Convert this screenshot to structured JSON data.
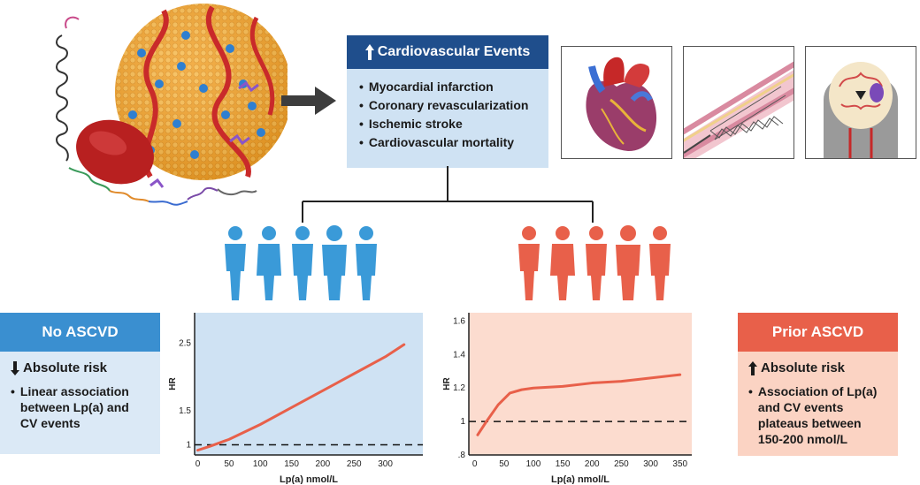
{
  "cv_events": {
    "title": "Cardiovascular Events",
    "items": [
      "Myocardial infarction",
      "Coronary revascularization",
      "Ischemic stroke",
      "Cardiovascular mortality"
    ]
  },
  "no_ascvd": {
    "title": "No ASCVD",
    "risk": "Absolute risk",
    "bullet": "Linear association between Lp(a) and CV events"
  },
  "prior_ascvd": {
    "title": "Prior ASCVD",
    "risk": "Absolute risk",
    "bullet": "Association of Lp(a) and CV events plateaus between 150-200 nmol/L"
  },
  "colors": {
    "blue": "#3a8fd0",
    "orange": "#e8604a",
    "navy": "#1f4e8c",
    "chart_line": "#e8604a"
  },
  "icons": [
    "lpa-particle-illustration",
    "arrow-right-icon",
    "heart-illustration",
    "stent-illustration",
    "brain-illustration",
    "people-group-icon"
  ],
  "chart_data": [
    {
      "type": "line",
      "xlabel": "Lp(a) nmol/L",
      "ylabel": "HR",
      "xticks": [
        0,
        50,
        100,
        150,
        200,
        250,
        300
      ],
      "yticks": [
        "1",
        "1.5",
        "2.5"
      ],
      "xlim": [
        -5,
        360
      ],
      "ylim": [
        0.85,
        2.95
      ],
      "reference_line": 1,
      "series": [
        {
          "x": [
            0,
            20,
            50,
            100,
            150,
            200,
            250,
            300,
            330
          ],
          "y": [
            0.92,
            0.98,
            1.08,
            1.3,
            1.55,
            1.8,
            2.05,
            2.3,
            2.48
          ]
        }
      ]
    },
    {
      "type": "line",
      "xlabel": "Lp(a) nmol/L",
      "ylabel": "HR",
      "xticks": [
        0,
        50,
        100,
        150,
        200,
        250,
        300,
        350
      ],
      "yticks": [
        ".8",
        "1",
        "1.2",
        "1.4",
        "1.6"
      ],
      "ytick_values": [
        0.8,
        1.0,
        1.2,
        1.4,
        1.6
      ],
      "xlim": [
        -10,
        370
      ],
      "ylim": [
        0.8,
        1.65
      ],
      "reference_line": 1,
      "series": [
        {
          "x": [
            5,
            20,
            40,
            60,
            80,
            100,
            150,
            200,
            250,
            300,
            350
          ],
          "y": [
            0.92,
            1.0,
            1.1,
            1.17,
            1.19,
            1.2,
            1.21,
            1.23,
            1.24,
            1.26,
            1.28
          ]
        }
      ]
    }
  ]
}
